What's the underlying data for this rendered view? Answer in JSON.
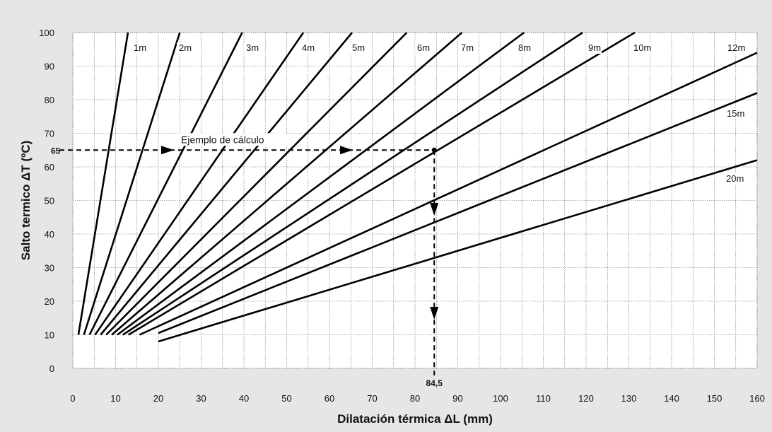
{
  "chart_data": {
    "type": "line",
    "title": "",
    "xlabel": "Dilatación térmica ΔL (mm)",
    "ylabel": "Salto termico ΔT (ºC)",
    "xlim": [
      0,
      160
    ],
    "ylim": [
      0,
      100
    ],
    "x_ticks": [
      0,
      10,
      20,
      30,
      40,
      50,
      60,
      70,
      80,
      90,
      100,
      110,
      120,
      130,
      140,
      150,
      160
    ],
    "y_ticks": [
      0,
      10,
      20,
      30,
      40,
      50,
      60,
      70,
      80,
      90,
      100
    ],
    "grid": true,
    "series": [
      {
        "name": "1m",
        "points": [
          [
            1.3,
            10
          ],
          [
            12.9,
            100
          ]
        ]
      },
      {
        "name": "2m",
        "points": [
          [
            2.6,
            10
          ],
          [
            25.0,
            100
          ]
        ]
      },
      {
        "name": "3m",
        "points": [
          [
            3.9,
            10
          ],
          [
            39.6,
            100
          ]
        ]
      },
      {
        "name": "4m",
        "points": [
          [
            5.2,
            10
          ],
          [
            53.9,
            100
          ]
        ]
      },
      {
        "name": "5m",
        "points": [
          [
            6.5,
            10
          ],
          [
            65.3,
            100
          ]
        ]
      },
      {
        "name": "6m",
        "points": [
          [
            7.8,
            10
          ],
          [
            78.1,
            100
          ]
        ]
      },
      {
        "name": "7m",
        "points": [
          [
            9.1,
            10
          ],
          [
            91.0,
            100
          ]
        ]
      },
      {
        "name": "8m",
        "points": [
          [
            10.4,
            10
          ],
          [
            105.5,
            100
          ]
        ]
      },
      {
        "name": "9m",
        "points": [
          [
            11.7,
            10
          ],
          [
            119.2,
            100
          ]
        ]
      },
      {
        "name": "10m",
        "points": [
          [
            13.0,
            10
          ],
          [
            131.4,
            100
          ]
        ]
      },
      {
        "name": "12m",
        "points": [
          [
            15.6,
            10
          ],
          [
            160,
            94
          ]
        ]
      },
      {
        "name": "15m",
        "points": [
          [
            20.0,
            10.5
          ],
          [
            160,
            82
          ]
        ]
      },
      {
        "name": "20m",
        "points": [
          [
            20.0,
            8
          ],
          [
            160,
            62
          ]
        ]
      }
    ],
    "annotations": {
      "example_label": "Ejemplo de cálculo",
      "example_y": 65,
      "example_y_label": "65",
      "example_x": 84.5,
      "example_x_label": "84,5"
    }
  }
}
